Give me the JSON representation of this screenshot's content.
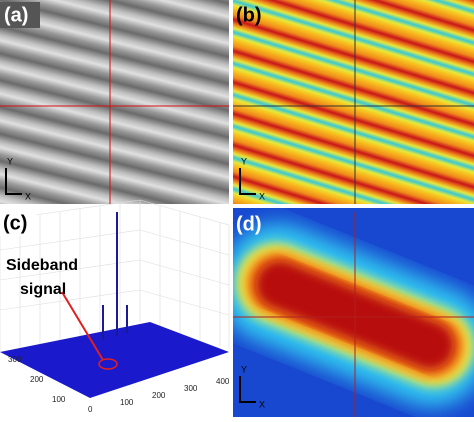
{
  "panels": [
    {
      "label": "(a)",
      "axis_y": "Y",
      "axis_x": "X"
    },
    {
      "label": "(b)",
      "axis_y": "Y",
      "axis_x": "X"
    },
    {
      "label": "(c)",
      "annotation": [
        "Sideband",
        "signal"
      ],
      "left_axis_ticks": [
        "300",
        "200",
        "100"
      ],
      "right_axis_ticks": [
        "0",
        "100",
        "200",
        "300",
        "400"
      ]
    },
    {
      "label": "(d)",
      "axis_y": "Y",
      "axis_x": "X"
    }
  ]
}
